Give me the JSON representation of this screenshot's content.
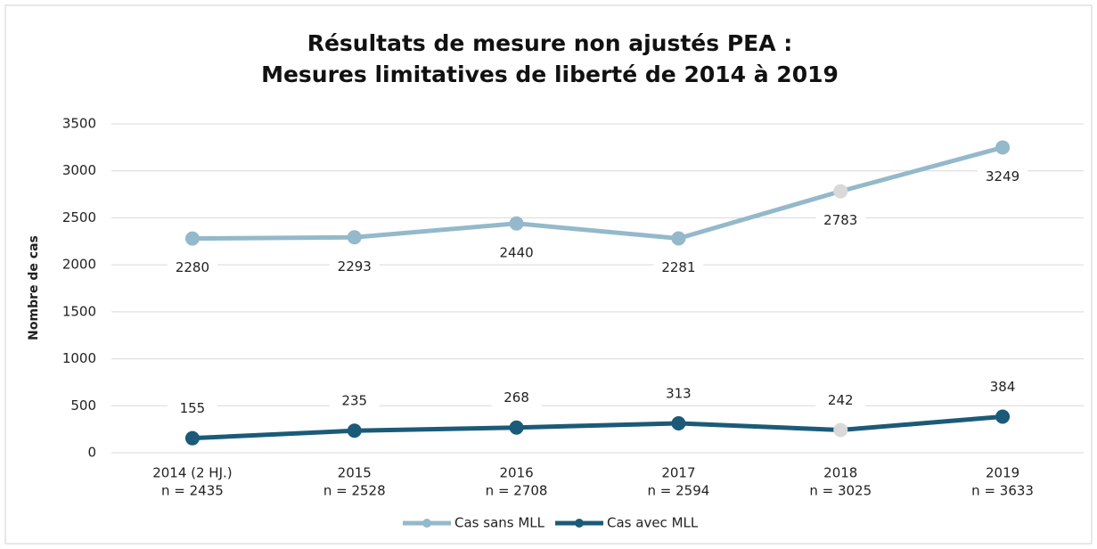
{
  "chart_data": {
    "type": "line",
    "title": [
      "Résultats de mesure non ajustés PEA :",
      "Mesures limitatives de liberté de 2014 à 2019"
    ],
    "y_label": "Nombre de cas",
    "categories": [
      [
        "2014 (2 HJ.)",
        "n = 2435"
      ],
      [
        "2015",
        "n = 2528"
      ],
      [
        "2016",
        "n = 2708"
      ],
      [
        "2017",
        "n = 2594"
      ],
      [
        "2018",
        "n = 3025"
      ],
      [
        "2019",
        "n = 3633"
      ]
    ],
    "series": [
      {
        "name": "Cas sans MLL",
        "color": "#93b9ca",
        "values": [
          2280,
          2293,
          2440,
          2281,
          2783,
          3249
        ],
        "point_colors": [
          "#93b9ca",
          "#93b9ca",
          "#93b9ca",
          "#93b9ca",
          "#d9d9d9",
          "#93b9ca"
        ],
        "label_side": "below"
      },
      {
        "name": "Cas avec MLL",
        "color": "#1b5a78",
        "values": [
          155,
          235,
          268,
          313,
          242,
          384
        ],
        "point_colors": [
          "#1b5a78",
          "#1b5a78",
          "#1b5a78",
          "#1b5a78",
          "#d9d9d9",
          "#1b5a78"
        ],
        "label_side": "above"
      }
    ],
    "ylim": [
      0,
      3500
    ],
    "yticks": [
      0,
      500,
      1000,
      1500,
      2000,
      2500,
      3000,
      3500
    ],
    "grid": true,
    "legend": "bottom"
  }
}
